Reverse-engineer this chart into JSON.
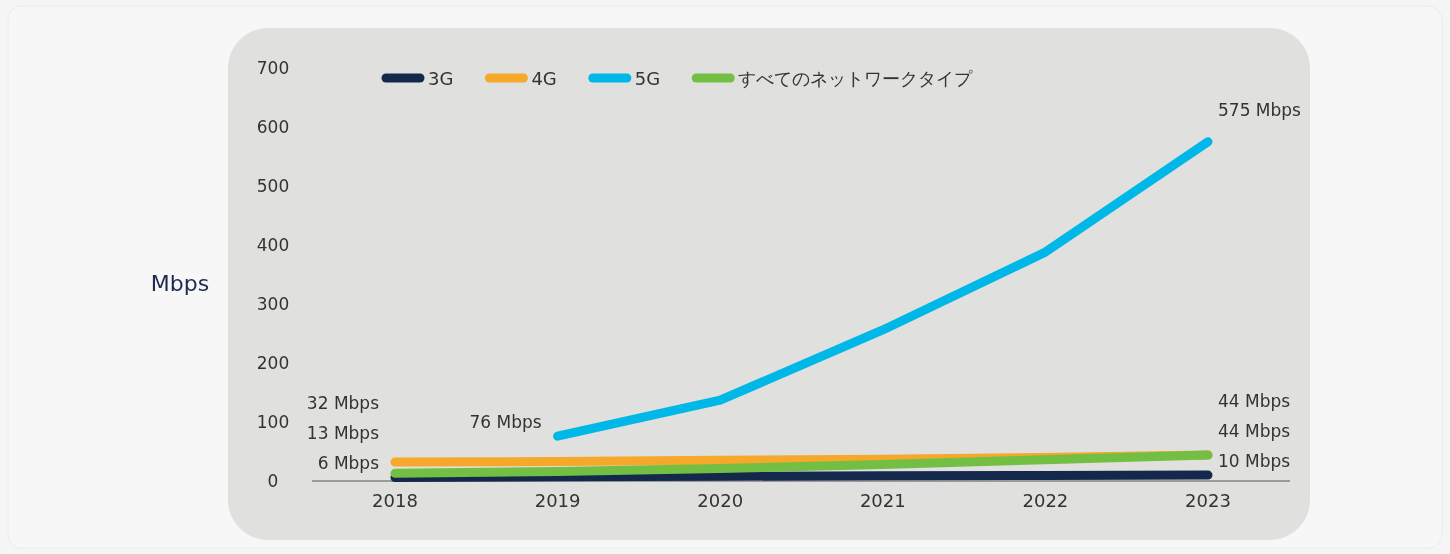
{
  "chart_data": {
    "type": "line",
    "ylabel": "Mbps",
    "legend": "top left",
    "categories": [
      "2018",
      "2019",
      "2020",
      "2021",
      "2022",
      "2023"
    ],
    "ylim": [
      0,
      700
    ],
    "yticks": [
      0,
      100,
      200,
      300,
      400,
      500,
      600,
      700
    ],
    "series": [
      {
        "name": "3G",
        "color": "#14284b",
        "values": [
          6,
          7,
          8,
          9,
          9.5,
          10
        ],
        "value_labels": [
          "6 Mbps",
          null,
          null,
          null,
          null,
          "10 Mbps"
        ]
      },
      {
        "name": "4G",
        "color": "#f5a82a",
        "values": [
          32,
          33,
          35,
          37,
          40,
          44
        ],
        "value_labels": [
          "32 Mbps",
          null,
          null,
          null,
          null,
          "44 Mbps"
        ]
      },
      {
        "name": "5G",
        "color": "#00b8e8",
        "values": [
          null,
          76,
          137,
          256,
          388,
          575
        ],
        "value_labels": [
          null,
          "76 Mbps",
          null,
          null,
          null,
          "575 Mbps"
        ]
      },
      {
        "name": "すべてのネットワークタイプ",
        "color": "#72bf44",
        "values": [
          13,
          16,
          21,
          28,
          36,
          44
        ],
        "value_labels": [
          "13 Mbps",
          null,
          null,
          null,
          null,
          "44 Mbps"
        ]
      }
    ]
  }
}
